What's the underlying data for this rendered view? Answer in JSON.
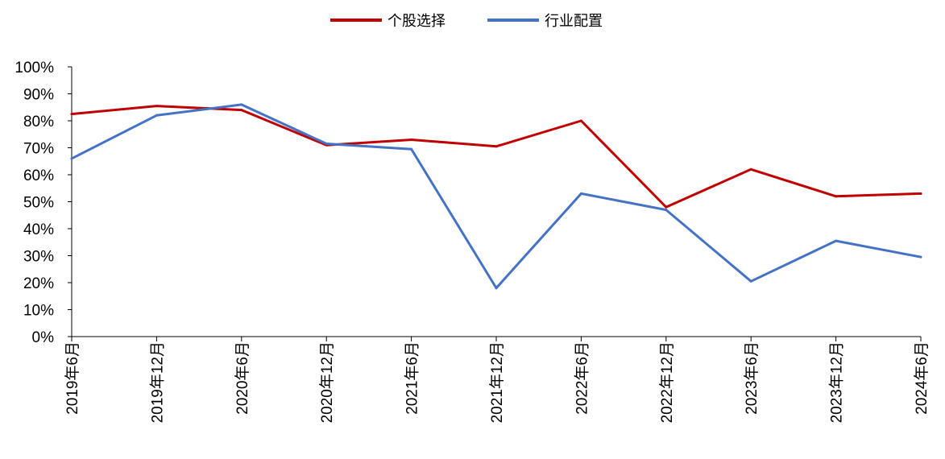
{
  "chart_data": {
    "type": "line",
    "title": "",
    "xlabel": "",
    "ylabel": "",
    "categories": [
      "2019年6月",
      "2019年12月",
      "2020年6月",
      "2020年12月",
      "2021年6月",
      "2021年12月",
      "2022年6月",
      "2022年12月",
      "2023年6月",
      "2023年12月",
      "2024年6月"
    ],
    "ylim": [
      0,
      100
    ],
    "yticks": [
      "0%",
      "10%",
      "20%",
      "30%",
      "40%",
      "50%",
      "60%",
      "70%",
      "80%",
      "90%",
      "100%"
    ],
    "grid": false,
    "legend_position": "top-center",
    "series": [
      {
        "name": "个股选择",
        "color": "#C00000",
        "values": [
          82.5,
          85.5,
          84,
          71,
          73,
          70.5,
          80,
          48,
          62,
          52,
          53
        ]
      },
      {
        "name": "行业配置",
        "color": "#4472C4",
        "values": [
          66,
          82,
          86,
          71.5,
          69.5,
          18,
          53,
          47,
          20.5,
          35.5,
          29.5
        ]
      }
    ]
  }
}
